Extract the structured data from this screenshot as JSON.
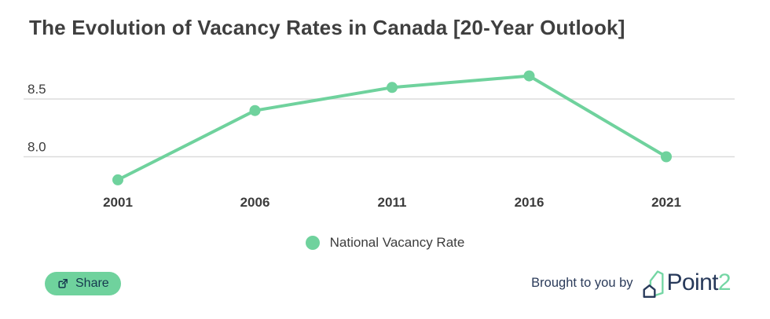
{
  "title": "The Evolution of Vacancy Rates in Canada [20-Year Outlook]",
  "chart_data": {
    "type": "line",
    "title": "The Evolution of Vacancy Rates in Canada [20-Year Outlook]",
    "categories": [
      "2001",
      "2006",
      "2011",
      "2016",
      "2021"
    ],
    "series": [
      {
        "name": "National Vacancy Rate",
        "values": [
          7.8,
          8.4,
          8.6,
          8.7,
          8.0
        ],
        "color": "#6FD29D"
      }
    ],
    "xlabel": "",
    "ylabel": "",
    "yticks": [
      {
        "value": 8.0,
        "label": "8.0"
      },
      {
        "value": 8.5,
        "label": "8.5"
      }
    ],
    "ylim": [
      7.65,
      8.85
    ],
    "grid": "horizontal-only",
    "legend_position": "bottom-center"
  },
  "legend": {
    "label": "National Vacancy Rate",
    "marker_color": "#6FD29D"
  },
  "share_button": {
    "label": "Share",
    "icon": "share-export-icon",
    "background": "#6FD29D",
    "text_color": "#16394F"
  },
  "attribution": {
    "text": "Brought to you by",
    "brand_main": "Point",
    "brand_accent": "2",
    "logo_icon": "point2-house-logo",
    "text_color": "#2B3B5A",
    "accent_color": "#74D6A4"
  },
  "colors": {
    "title": "#3F3F3F",
    "tick_label": "#3C3C3C",
    "gridline": "#DBDBDB",
    "background": "#FFFFFF",
    "navy": "#27395A"
  }
}
